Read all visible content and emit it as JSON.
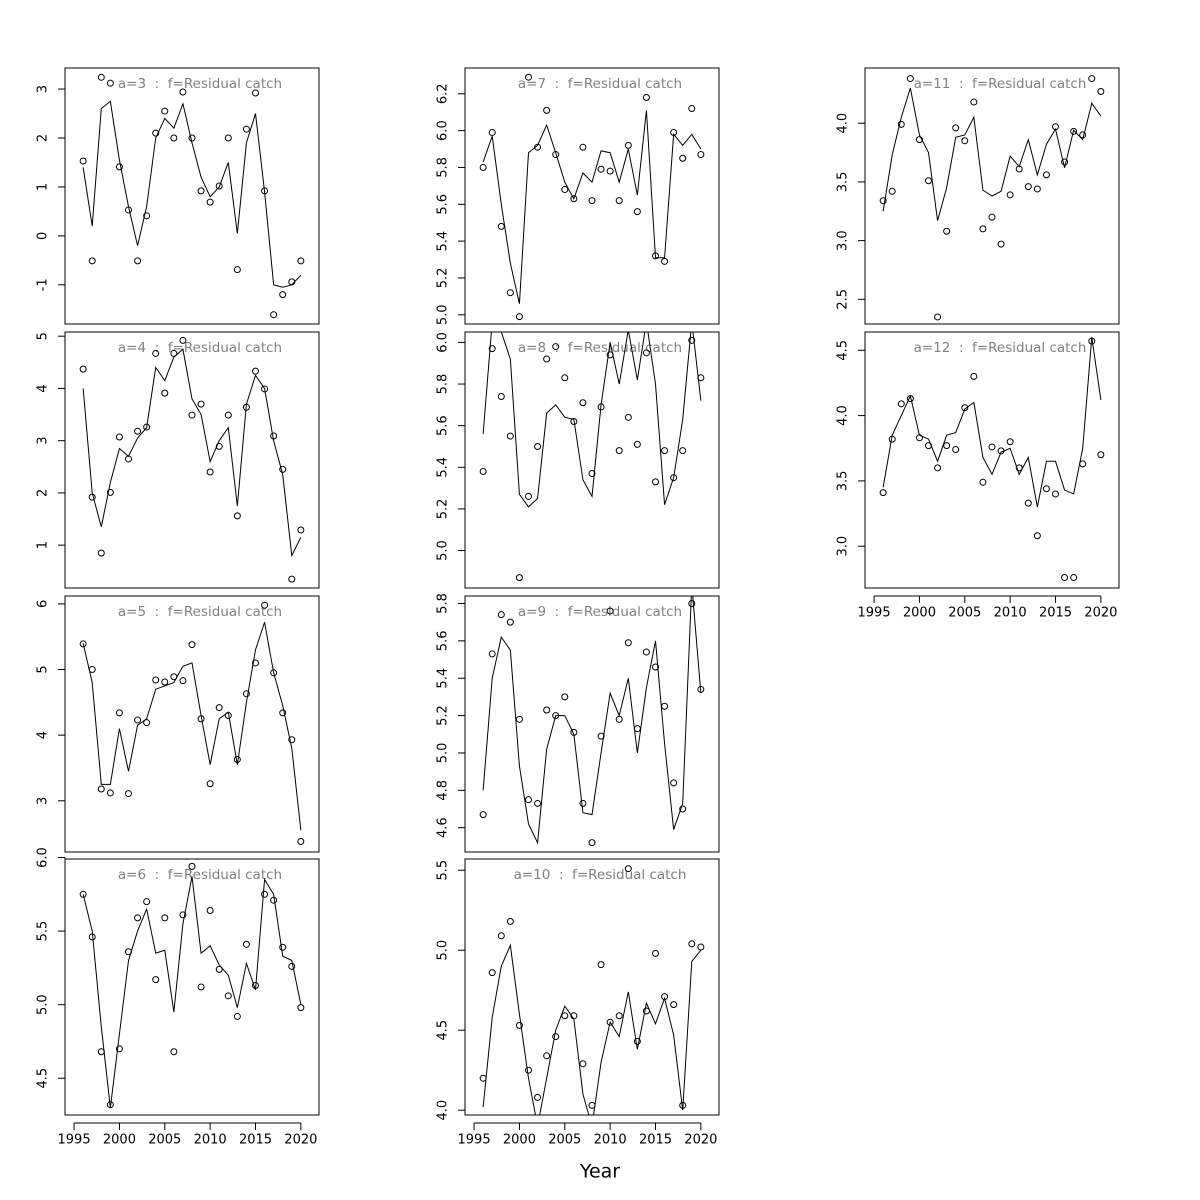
{
  "xlabel": "Year",
  "chart_data": [
    {
      "type": "line",
      "title": "a=3  :  f=Residual catch",
      "x": [
        1996,
        1997,
        1998,
        1999,
        2000,
        2001,
        2002,
        2003,
        2004,
        2005,
        2006,
        2007,
        2008,
        2009,
        2010,
        2011,
        2012,
        2013,
        2014,
        2015,
        2016,
        2017,
        2018,
        2019,
        2020
      ],
      "xlim": [
        1994,
        2022
      ],
      "ylim": [
        -1.8,
        3.43
      ],
      "yticks": [
        -1,
        0,
        1,
        2,
        3
      ],
      "series": [
        {
          "mode": "markers",
          "color": "#000000",
          "values": [
            1.53,
            -0.51,
            3.24,
            3.12,
            1.41,
            0.53,
            -0.51,
            0.41,
            2.1,
            2.55,
            2.0,
            2.94,
            2.0,
            0.92,
            0.69,
            1.02,
            2.0,
            -0.69,
            2.18,
            2.92,
            0.92,
            -1.61,
            -1.2,
            -0.94,
            -0.51
          ]
        },
        {
          "mode": "lines",
          "color": "#000000",
          "values": [
            1.4,
            0.2,
            2.6,
            2.75,
            1.55,
            0.6,
            -0.2,
            0.6,
            2.0,
            2.4,
            2.2,
            2.7,
            1.9,
            1.2,
            0.8,
            1.0,
            1.5,
            0.05,
            1.9,
            2.5,
            0.9,
            -1.0,
            -1.05,
            -1.0,
            -0.8
          ]
        }
      ]
    },
    {
      "type": "line",
      "title": "a=4  :  f=Residual catch",
      "x": [
        1996,
        1997,
        1998,
        1999,
        2000,
        2001,
        2002,
        2003,
        2004,
        2005,
        2006,
        2007,
        2008,
        2009,
        2010,
        2011,
        2012,
        2013,
        2014,
        2015,
        2016,
        2017,
        2018,
        2019,
        2020
      ],
      "xlim": [
        1994,
        2022
      ],
      "ylim": [
        0.18,
        5.08
      ],
      "yticks": [
        1,
        2,
        3,
        4,
        5
      ],
      "series": [
        {
          "mode": "markers",
          "color": "#000000",
          "values": [
            4.37,
            1.92,
            0.85,
            2.01,
            3.07,
            2.65,
            3.18,
            3.26,
            4.67,
            3.91,
            4.67,
            4.92,
            3.49,
            3.7,
            2.4,
            2.89,
            3.49,
            1.56,
            3.64,
            4.33,
            3.99,
            3.09,
            2.45,
            0.35,
            1.29
          ]
        },
        {
          "mode": "lines",
          "color": "#000000",
          "values": [
            4.0,
            2.0,
            1.35,
            2.2,
            2.85,
            2.7,
            3.05,
            3.25,
            4.4,
            4.15,
            4.6,
            4.75,
            3.8,
            3.5,
            2.6,
            3.0,
            3.25,
            1.75,
            3.7,
            4.25,
            4.0,
            3.0,
            2.35,
            0.8,
            1.15
          ]
        }
      ]
    },
    {
      "type": "line",
      "title": "a=5  :  f=Residual catch",
      "x": [
        1996,
        1997,
        1998,
        1999,
        2000,
        2001,
        2002,
        2003,
        2004,
        2005,
        2006,
        2007,
        2008,
        2009,
        2010,
        2011,
        2012,
        2013,
        2014,
        2015,
        2016,
        2017,
        2018,
        2019,
        2020
      ],
      "xlim": [
        1994,
        2022
      ],
      "ylim": [
        2.22,
        6.12
      ],
      "yticks": [
        3,
        4,
        5,
        6
      ],
      "series": [
        {
          "mode": "markers",
          "color": "#000000",
          "values": [
            5.39,
            5.0,
            3.18,
            3.12,
            4.34,
            3.11,
            4.23,
            4.19,
            4.84,
            4.81,
            4.89,
            4.83,
            5.38,
            4.25,
            3.26,
            4.42,
            4.3,
            3.63,
            4.63,
            5.1,
            5.98,
            4.95,
            4.34,
            3.93,
            2.38
          ]
        },
        {
          "mode": "lines",
          "color": "#000000",
          "values": [
            5.4,
            4.8,
            3.25,
            3.25,
            4.1,
            3.45,
            4.15,
            4.25,
            4.7,
            4.75,
            4.8,
            5.05,
            5.1,
            4.3,
            3.55,
            4.25,
            4.35,
            3.55,
            4.5,
            5.3,
            5.72,
            4.95,
            4.45,
            3.8,
            2.55
          ]
        }
      ]
    },
    {
      "type": "line",
      "title": "a=6  :  f=Residual catch",
      "x": [
        1996,
        1997,
        1998,
        1999,
        2000,
        2001,
        2002,
        2003,
        2004,
        2005,
        2006,
        2007,
        2008,
        2009,
        2010,
        2011,
        2012,
        2013,
        2014,
        2015,
        2016,
        2017,
        2018,
        2019,
        2020
      ],
      "xlim": [
        1994,
        2022
      ],
      "ylim": [
        4.25,
        5.99
      ],
      "yticks": [
        4.5,
        {
          "value": 5,
          "label": "5.0"
        },
        5.5,
        {
          "value": 6,
          "label": "6.0"
        }
      ],
      "xticks": [
        1995,
        2000,
        2005,
        2010,
        2015,
        2020
      ],
      "series": [
        {
          "mode": "markers",
          "color": "#000000",
          "values": [
            5.75,
            5.46,
            4.68,
            4.32,
            4.7,
            5.36,
            5.59,
            5.7,
            5.17,
            5.59,
            4.68,
            5.61,
            5.94,
            5.12,
            5.64,
            5.24,
            5.06,
            4.92,
            5.41,
            5.13,
            5.75,
            5.71,
            5.39,
            5.26,
            4.98
          ]
        },
        {
          "mode": "lines",
          "color": "#000000",
          "values": [
            5.75,
            5.5,
            4.85,
            4.3,
            4.8,
            5.3,
            5.5,
            5.65,
            5.35,
            5.37,
            4.95,
            5.55,
            5.87,
            5.35,
            5.4,
            5.27,
            5.2,
            4.98,
            5.28,
            5.1,
            5.85,
            5.75,
            5.33,
            5.3,
            5.0
          ]
        }
      ]
    },
    {
      "type": "line",
      "title": "a=7  :  f=Residual catch",
      "x": [
        1996,
        1997,
        1998,
        1999,
        2000,
        2001,
        2002,
        2003,
        2004,
        2005,
        2006,
        2007,
        2008,
        2009,
        2010,
        2011,
        2012,
        2013,
        2014,
        2015,
        2016,
        2017,
        2018,
        2019,
        2020
      ],
      "xlim": [
        1994,
        2022
      ],
      "ylim": [
        4.95,
        6.34
      ],
      "yticks": [
        {
          "value": 5,
          "label": "5.0"
        },
        5.2,
        5.4,
        5.6,
        5.8,
        {
          "value": 6,
          "label": "6.0"
        },
        6.2
      ],
      "series": [
        {
          "mode": "markers",
          "color": "#000000",
          "values": [
            5.8,
            5.99,
            5.48,
            5.12,
            4.99,
            6.29,
            5.91,
            6.11,
            5.87,
            5.68,
            5.63,
            5.91,
            5.62,
            5.79,
            5.78,
            5.62,
            5.92,
            5.56,
            6.18,
            5.32,
            5.29,
            5.99,
            5.85,
            6.12,
            5.87
          ]
        },
        {
          "mode": "lines",
          "color": "#000000",
          "values": [
            5.83,
            5.97,
            5.6,
            5.28,
            5.06,
            5.88,
            5.92,
            6.03,
            5.88,
            5.72,
            5.63,
            5.77,
            5.72,
            5.89,
            5.88,
            5.72,
            5.9,
            5.65,
            6.11,
            5.31,
            5.31,
            5.98,
            5.92,
            5.98,
            5.9
          ]
        }
      ]
    },
    {
      "type": "line",
      "title": "a=8  :  f=Residual catch",
      "x": [
        1996,
        1997,
        1998,
        1999,
        2000,
        2001,
        2002,
        2003,
        2004,
        2005,
        2006,
        2007,
        2008,
        2009,
        2010,
        2011,
        2012,
        2013,
        2014,
        2015,
        2016,
        2017,
        2018,
        2019,
        2020
      ],
      "xlim": [
        1994,
        2022
      ],
      "ylim": [
        4.82,
        6.05
      ],
      "yticks": [
        {
          "value": 5,
          "label": "5.0"
        },
        5.2,
        5.4,
        5.6,
        5.8,
        {
          "value": 6,
          "label": "6.0"
        }
      ],
      "series": [
        {
          "mode": "markers",
          "color": "#000000",
          "values": [
            5.38,
            5.97,
            5.74,
            5.55,
            4.87,
            5.26,
            5.5,
            5.92,
            5.98,
            5.83,
            5.62,
            5.71,
            5.37,
            5.69,
            5.94,
            5.48,
            5.64,
            5.51,
            5.95,
            5.33,
            5.48,
            5.35,
            5.48,
            6.01,
            5.83
          ]
        },
        {
          "mode": "lines",
          "color": "#000000",
          "values": [
            5.56,
            6.1,
            6.05,
            5.92,
            5.27,
            5.21,
            5.25,
            5.66,
            5.7,
            5.64,
            5.63,
            5.34,
            5.26,
            5.7,
            6.0,
            5.8,
            6.06,
            5.82,
            6.1,
            5.8,
            5.22,
            5.35,
            5.63,
            6.1,
            5.72
          ]
        }
      ]
    },
    {
      "type": "line",
      "title": "a=9  :  f=Residual catch",
      "x": [
        1996,
        1997,
        1998,
        1999,
        2000,
        2001,
        2002,
        2003,
        2004,
        2005,
        2006,
        2007,
        2008,
        2009,
        2010,
        2011,
        2012,
        2013,
        2014,
        2015,
        2016,
        2017,
        2018,
        2019,
        2020
      ],
      "xlim": [
        1994,
        2022
      ],
      "ylim": [
        4.47,
        5.84
      ],
      "yticks": [
        4.6,
        4.8,
        {
          "value": 5,
          "label": "5.0"
        },
        5.2,
        5.4,
        5.6,
        5.8
      ],
      "series": [
        {
          "mode": "markers",
          "color": "#000000",
          "values": [
            4.67,
            5.53,
            5.74,
            5.7,
            5.18,
            4.75,
            4.73,
            5.23,
            5.2,
            5.3,
            5.11,
            4.73,
            4.52,
            5.09,
            5.76,
            5.18,
            5.59,
            5.13,
            5.54,
            5.46,
            5.25,
            4.84,
            4.7,
            5.8,
            5.34
          ]
        },
        {
          "mode": "lines",
          "color": "#000000",
          "values": [
            4.8,
            5.4,
            5.62,
            5.55,
            4.93,
            4.62,
            4.52,
            5.02,
            5.2,
            5.2,
            5.1,
            4.68,
            4.67,
            5.0,
            5.32,
            5.2,
            5.4,
            5.0,
            5.35,
            5.6,
            5.05,
            4.59,
            4.73,
            5.9,
            5.32
          ]
        }
      ]
    },
    {
      "type": "line",
      "title": "a=10  :  f=Residual catch",
      "x": [
        1996,
        1997,
        1998,
        1999,
        2000,
        2001,
        2002,
        2003,
        2004,
        2005,
        2006,
        2007,
        2008,
        2009,
        2010,
        2011,
        2012,
        2013,
        2014,
        2015,
        2016,
        2017,
        2018,
        2019,
        2020
      ],
      "xlim": [
        1994,
        2022
      ],
      "ylim": [
        3.97,
        5.57
      ],
      "yticks": [
        {
          "value": 4,
          "label": "4.0"
        },
        4.5,
        {
          "value": 5,
          "label": "5.0"
        },
        5.5
      ],
      "xticks": [
        1995,
        2000,
        2005,
        2010,
        2015,
        2020
      ],
      "series": [
        {
          "mode": "markers",
          "color": "#000000",
          "values": [
            4.2,
            4.86,
            5.09,
            5.18,
            4.53,
            4.25,
            4.08,
            4.34,
            4.46,
            4.59,
            4.59,
            4.29,
            4.03,
            4.91,
            4.55,
            4.59,
            5.51,
            4.43,
            4.62,
            4.98,
            4.71,
            4.66,
            4.03,
            5.04,
            5.02
          ]
        },
        {
          "mode": "lines",
          "color": "#000000",
          "values": [
            4.02,
            4.58,
            4.9,
            5.03,
            4.6,
            4.2,
            3.9,
            4.2,
            4.5,
            4.65,
            4.57,
            4.1,
            3.9,
            4.3,
            4.55,
            4.46,
            4.74,
            4.38,
            4.67,
            4.54,
            4.7,
            4.47,
            4.0,
            4.93,
            5.0
          ]
        }
      ]
    },
    {
      "type": "line",
      "title": "a=11  :  f=Residual catch",
      "x": [
        1996,
        1997,
        1998,
        1999,
        2000,
        2001,
        2002,
        2003,
        2004,
        2005,
        2006,
        2007,
        2008,
        2009,
        2010,
        2011,
        2012,
        2013,
        2014,
        2015,
        2016,
        2017,
        2018,
        2019,
        2020
      ],
      "xlim": [
        1994,
        2022
      ],
      "ylim": [
        2.29,
        4.47
      ],
      "yticks": [
        2.5,
        {
          "value": 3,
          "label": "3.0"
        },
        3.5,
        {
          "value": 4,
          "label": "4.0"
        }
      ],
      "series": [
        {
          "mode": "markers",
          "color": "#000000",
          "values": [
            3.34,
            3.42,
            3.99,
            4.38,
            3.86,
            3.51,
            2.35,
            3.08,
            3.96,
            3.85,
            4.18,
            3.1,
            3.2,
            2.97,
            3.39,
            3.61,
            3.46,
            3.44,
            3.56,
            3.97,
            3.67,
            3.93,
            3.9,
            4.38,
            4.27
          ]
        },
        {
          "mode": "lines",
          "color": "#000000",
          "values": [
            3.25,
            3.73,
            4.05,
            4.3,
            3.9,
            3.75,
            3.17,
            3.45,
            3.88,
            3.9,
            4.05,
            3.43,
            3.38,
            3.42,
            3.72,
            3.63,
            3.86,
            3.56,
            3.82,
            3.95,
            3.62,
            3.94,
            3.86,
            4.17,
            4.06
          ]
        }
      ]
    },
    {
      "type": "line",
      "title": "a=12  :  f=Residual catch",
      "x": [
        1996,
        1997,
        1998,
        1999,
        2000,
        2001,
        2002,
        2003,
        2004,
        2005,
        2006,
        2007,
        2008,
        2009,
        2010,
        2011,
        2012,
        2013,
        2014,
        2015,
        2016,
        2017,
        2018,
        2019,
        2020
      ],
      "xlim": [
        1994,
        2022
      ],
      "ylim": [
        2.68,
        4.64
      ],
      "yticks": [
        {
          "value": 3,
          "label": "3.0"
        },
        3.5,
        {
          "value": 4,
          "label": "4.0"
        },
        4.5
      ],
      "xticks": [
        1995,
        2000,
        2005,
        2010,
        2015,
        2020
      ],
      "series": [
        {
          "mode": "markers",
          "color": "#000000",
          "values": [
            3.41,
            3.82,
            4.09,
            4.13,
            3.83,
            3.77,
            3.6,
            3.77,
            3.74,
            4.06,
            4.3,
            3.49,
            3.76,
            3.73,
            3.8,
            3.6,
            3.33,
            3.08,
            3.44,
            3.4,
            2.76,
            2.76,
            3.63,
            4.57,
            3.7
          ]
        },
        {
          "mode": "lines",
          "color": "#000000",
          "values": [
            3.45,
            3.85,
            4.0,
            4.15,
            3.85,
            3.82,
            3.65,
            3.85,
            3.87,
            4.05,
            4.1,
            3.68,
            3.55,
            3.72,
            3.75,
            3.55,
            3.68,
            3.3,
            3.65,
            3.65,
            3.43,
            3.4,
            3.75,
            4.6,
            4.12
          ]
        }
      ]
    }
  ]
}
